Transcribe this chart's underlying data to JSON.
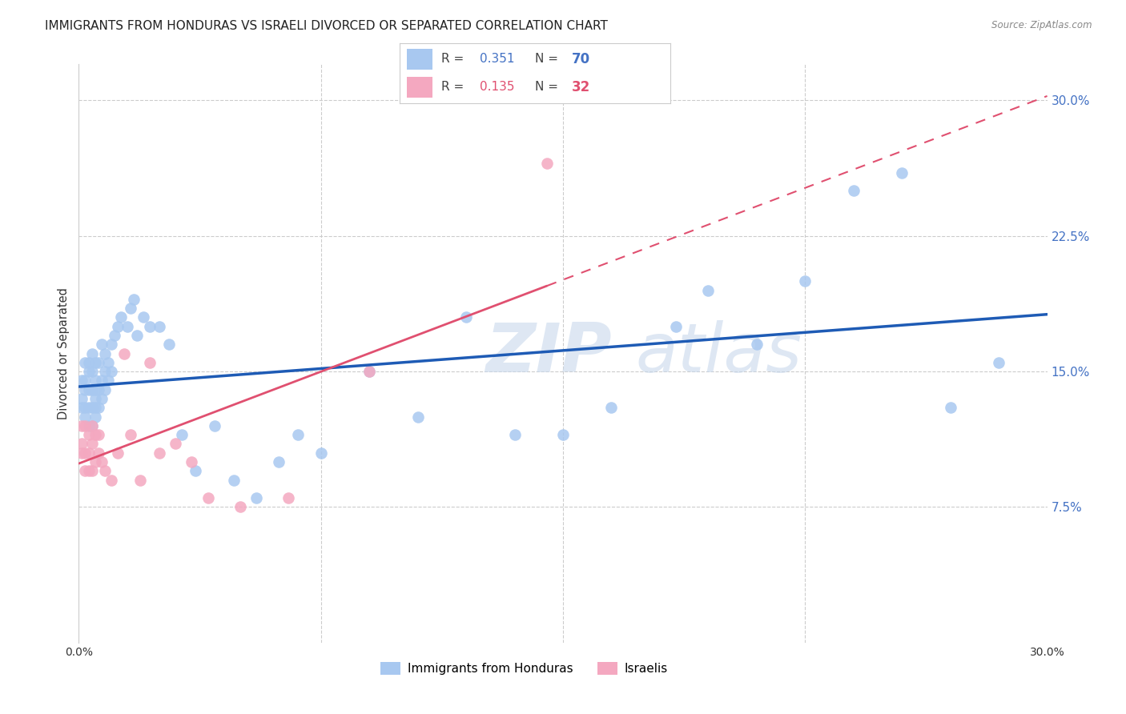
{
  "title": "IMMIGRANTS FROM HONDURAS VS ISRAELI DIVORCED OR SEPARATED CORRELATION CHART",
  "source": "Source: ZipAtlas.com",
  "ylabel": "Divorced or Separated",
  "xlim": [
    0.0,
    0.3
  ],
  "ylim": [
    0.0,
    0.32
  ],
  "ytick_right": [
    0.075,
    0.15,
    0.225,
    0.3
  ],
  "ytick_right_labels": [
    "7.5%",
    "15.0%",
    "22.5%",
    "30.0%"
  ],
  "blue_R": "0.351",
  "blue_N": "70",
  "pink_R": "0.135",
  "pink_N": "32",
  "blue_color": "#A8C8F0",
  "pink_color": "#F4A8C0",
  "blue_line_color": "#1E5BB5",
  "pink_line_color": "#E05070",
  "legend_blue_label": "Immigrants from Honduras",
  "legend_pink_label": "Israelis",
  "watermark_line1": "ZIP",
  "watermark_line2": "atlas",
  "grid_color": "#CCCCCC",
  "background_color": "#FFFFFF",
  "blue_points_x": [
    0.001,
    0.001,
    0.001,
    0.002,
    0.002,
    0.002,
    0.002,
    0.002,
    0.003,
    0.003,
    0.003,
    0.003,
    0.003,
    0.004,
    0.004,
    0.004,
    0.004,
    0.004,
    0.005,
    0.005,
    0.005,
    0.005,
    0.005,
    0.005,
    0.006,
    0.006,
    0.006,
    0.007,
    0.007,
    0.007,
    0.008,
    0.008,
    0.008,
    0.009,
    0.009,
    0.01,
    0.01,
    0.011,
    0.012,
    0.013,
    0.015,
    0.016,
    0.017,
    0.018,
    0.02,
    0.022,
    0.025,
    0.028,
    0.032,
    0.036,
    0.042,
    0.048,
    0.055,
    0.062,
    0.068,
    0.075,
    0.09,
    0.105,
    0.12,
    0.135,
    0.15,
    0.165,
    0.185,
    0.195,
    0.21,
    0.225,
    0.24,
    0.255,
    0.27,
    0.285
  ],
  "blue_points_y": [
    0.13,
    0.135,
    0.145,
    0.125,
    0.13,
    0.14,
    0.145,
    0.155,
    0.12,
    0.13,
    0.14,
    0.15,
    0.155,
    0.12,
    0.13,
    0.14,
    0.15,
    0.16,
    0.125,
    0.13,
    0.135,
    0.14,
    0.145,
    0.155,
    0.13,
    0.14,
    0.155,
    0.135,
    0.145,
    0.165,
    0.14,
    0.15,
    0.16,
    0.145,
    0.155,
    0.15,
    0.165,
    0.17,
    0.175,
    0.18,
    0.175,
    0.185,
    0.19,
    0.17,
    0.18,
    0.175,
    0.175,
    0.165,
    0.115,
    0.095,
    0.12,
    0.09,
    0.08,
    0.1,
    0.115,
    0.105,
    0.15,
    0.125,
    0.18,
    0.115,
    0.115,
    0.13,
    0.175,
    0.195,
    0.165,
    0.2,
    0.25,
    0.26,
    0.13,
    0.155
  ],
  "pink_points_x": [
    0.001,
    0.001,
    0.001,
    0.002,
    0.002,
    0.002,
    0.003,
    0.003,
    0.003,
    0.004,
    0.004,
    0.004,
    0.005,
    0.005,
    0.006,
    0.006,
    0.007,
    0.008,
    0.01,
    0.012,
    0.014,
    0.016,
    0.019,
    0.022,
    0.025,
    0.03,
    0.035,
    0.04,
    0.05,
    0.065,
    0.09,
    0.145
  ],
  "pink_points_y": [
    0.105,
    0.11,
    0.12,
    0.095,
    0.105,
    0.12,
    0.095,
    0.105,
    0.115,
    0.095,
    0.11,
    0.12,
    0.1,
    0.115,
    0.105,
    0.115,
    0.1,
    0.095,
    0.09,
    0.105,
    0.16,
    0.115,
    0.09,
    0.155,
    0.105,
    0.11,
    0.1,
    0.08,
    0.075,
    0.08,
    0.15,
    0.265
  ]
}
